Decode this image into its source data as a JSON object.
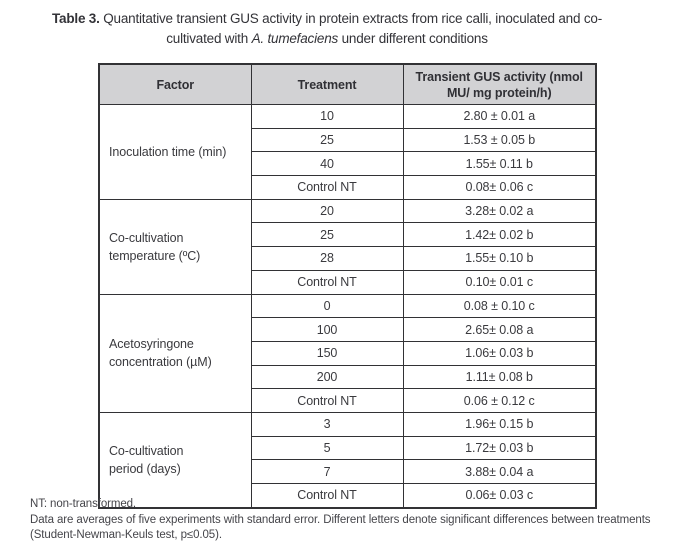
{
  "caption": {
    "label": "Table 3.",
    "line1_rest": " Quantitative transient GUS activity in protein extracts from rice calli, inoculated and co-",
    "line2_pre": "cultivated with ",
    "line2_italic": "A. tumefaciens",
    "line2_post": " under different conditions"
  },
  "table": {
    "headers": [
      "Factor",
      "Treatment",
      [
        "Transient GUS activity (nmol",
        "MU/ mg protein/h)"
      ]
    ],
    "groups": [
      {
        "factor_lines": [
          "Inoculation time (min)"
        ],
        "rows": [
          {
            "treatment": "10",
            "activity": "2.80 ± 0.01 a"
          },
          {
            "treatment": "25",
            "activity": "1.53 ± 0.05 b"
          },
          {
            "treatment": "40",
            "activity": "1.55± 0.11 b"
          },
          {
            "treatment": "Control NT",
            "activity": "0.08± 0.06 c"
          }
        ]
      },
      {
        "factor_lines": [
          "Co-cultivation",
          "temperature (ºC)"
        ],
        "rows": [
          {
            "treatment": "20",
            "activity": "3.28± 0.02 a"
          },
          {
            "treatment": "25",
            "activity": "1.42± 0.02 b"
          },
          {
            "treatment": "28",
            "activity": "1.55± 0.10 b"
          },
          {
            "treatment": "Control NT",
            "activity": "0.10± 0.01 c"
          }
        ]
      },
      {
        "factor_lines": [
          "Acetosyringone",
          "concentration (µM)"
        ],
        "rows": [
          {
            "treatment": "0",
            "activity": "0.08 ± 0.10 c"
          },
          {
            "treatment": "100",
            "activity": "2.65± 0.08 a"
          },
          {
            "treatment": "150",
            "activity": "1.06± 0.03 b"
          },
          {
            "treatment": "200",
            "activity": "1.11± 0.08 b"
          },
          {
            "treatment": "Control NT",
            "activity": "0.06 ± 0.12 c"
          }
        ]
      },
      {
        "factor_lines": [
          "Co-cultivation",
          "period (days)"
        ],
        "rows": [
          {
            "treatment": "3",
            "activity": "1.96± 0.15 b"
          },
          {
            "treatment": "5",
            "activity": "1.72± 0.03 b"
          },
          {
            "treatment": "7",
            "activity": "3.88± 0.04 a"
          },
          {
            "treatment": "Control NT",
            "activity": "0.06± 0.03 c"
          }
        ]
      }
    ]
  },
  "footnotes": [
    "NT: non-transformed.",
    "Data are averages of five experiments with standard error. Different letters denote significant differences between treatments (Student-Newman-Keuls test, p≤0.05)."
  ]
}
